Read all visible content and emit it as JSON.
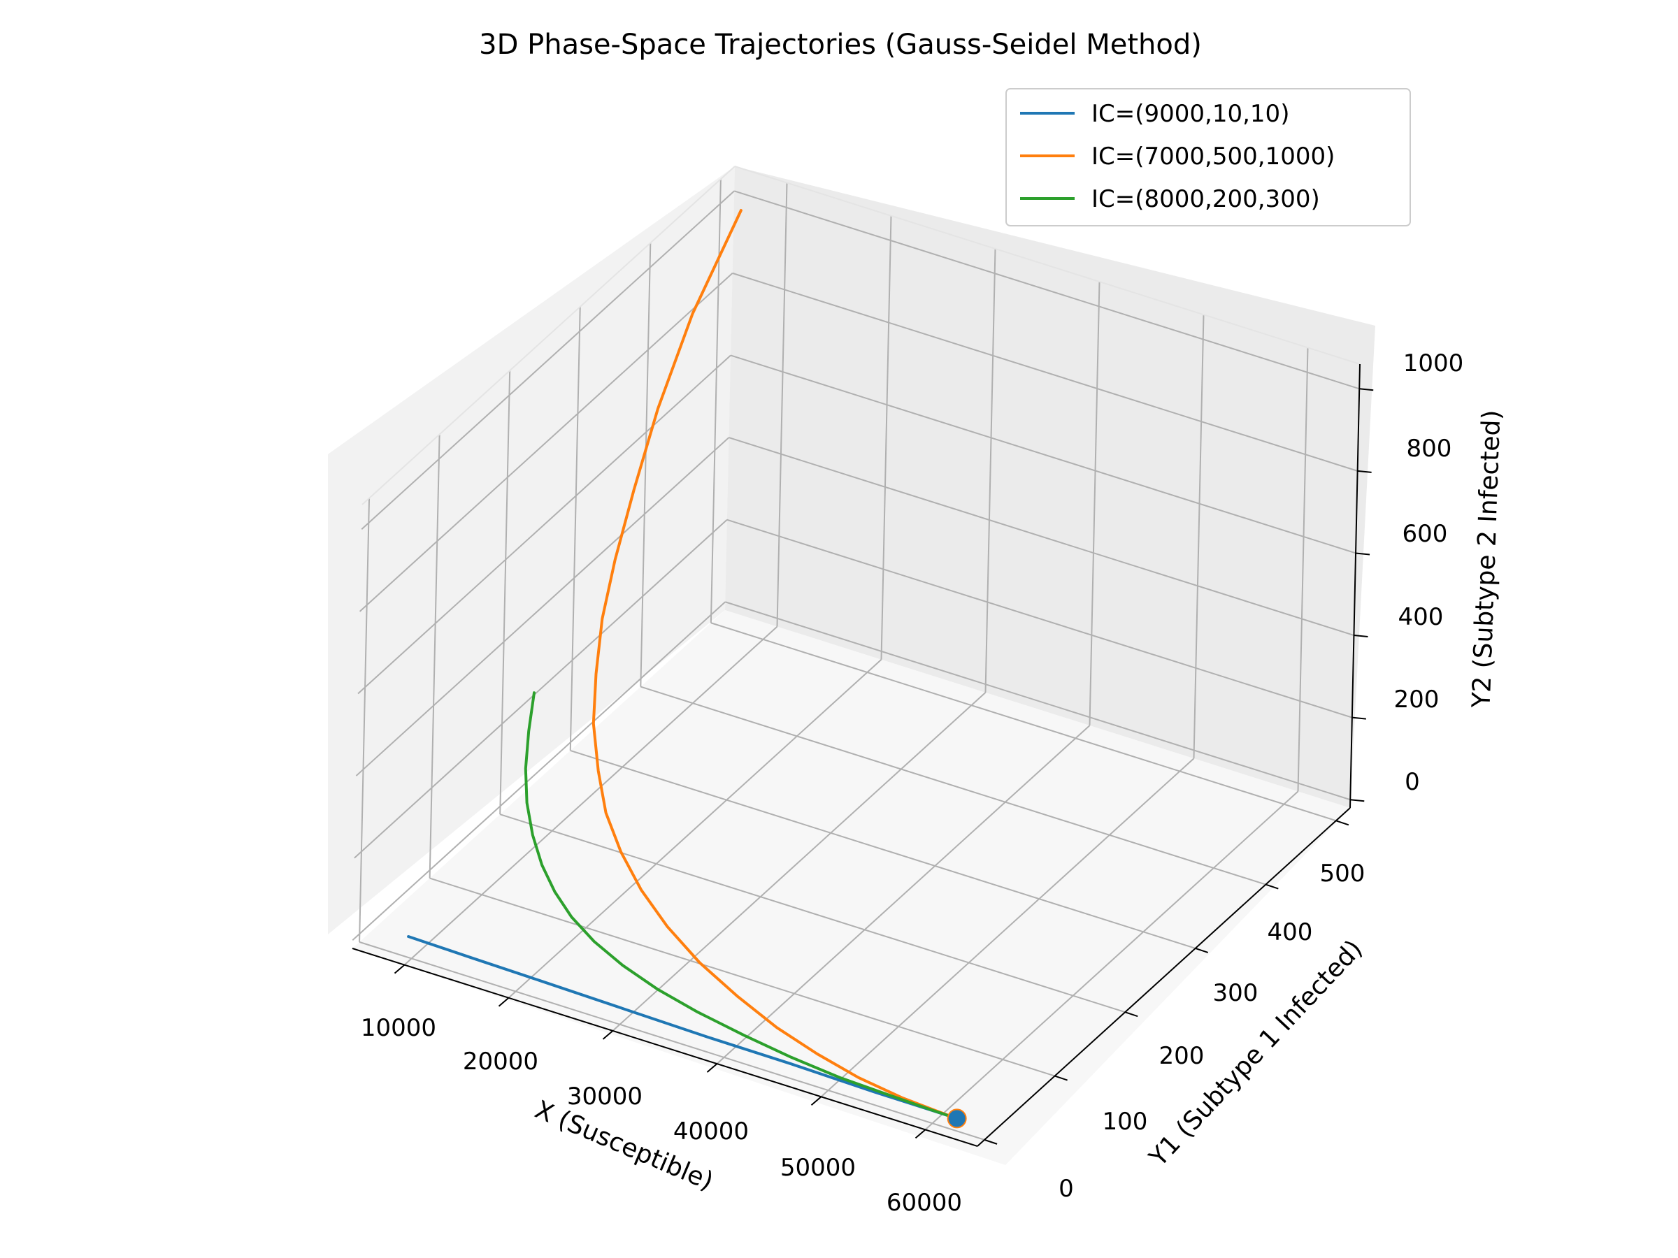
{
  "chart_data": {
    "type": "line",
    "projection": "3d",
    "title": "3D Phase-Space Trajectories (Gauss-Seidel Method)",
    "xlabel": "X (Susceptible)",
    "ylabel": "Y1 (Subtype 1 Infected)",
    "zlabel": "Y2 (Subtype 2 Infected)",
    "xlim": [
      5000,
      65000
    ],
    "ylim": [
      -10,
      520
    ],
    "zlim": [
      -20,
      1060
    ],
    "xticks": [
      "10000",
      "20000",
      "30000",
      "40000",
      "50000",
      "60000"
    ],
    "yticks": [
      "0",
      "100",
      "200",
      "300",
      "400",
      "500"
    ],
    "zticks": [
      "0",
      "200",
      "400",
      "600",
      "800",
      "1000"
    ],
    "grid": true,
    "legend_position": "top-right",
    "equilibrium_point": {
      "x": 62000,
      "y1": 5,
      "y2": 0
    },
    "series": [
      {
        "name": "IC=(9000,10,10)",
        "color": "#1f77b4",
        "points": [
          [
            9000,
            10,
            10
          ],
          [
            15000,
            9,
            9
          ],
          [
            22000,
            8,
            8
          ],
          [
            30000,
            7,
            6
          ],
          [
            38000,
            6,
            4
          ],
          [
            46000,
            6,
            3
          ],
          [
            54000,
            5,
            1
          ],
          [
            60000,
            5,
            0.5
          ],
          [
            62000,
            5,
            0
          ]
        ]
      },
      {
        "name": "IC=(7000,500,1000)",
        "color": "#ff7f0e",
        "points": [
          [
            7000,
            500,
            1000
          ],
          [
            8500,
            410,
            900
          ],
          [
            10000,
            340,
            790
          ],
          [
            11500,
            285,
            690
          ],
          [
            12800,
            240,
            600
          ],
          [
            14000,
            205,
            520
          ],
          [
            15500,
            175,
            445
          ],
          [
            17000,
            150,
            375
          ],
          [
            19000,
            128,
            310
          ],
          [
            21000,
            110,
            252
          ],
          [
            23500,
            95,
            200
          ],
          [
            26500,
            80,
            155
          ],
          [
            30000,
            66,
            115
          ],
          [
            34000,
            53,
            80
          ],
          [
            38500,
            41,
            52
          ],
          [
            43000,
            30,
            30
          ],
          [
            47500,
            21,
            16
          ],
          [
            52000,
            13,
            7
          ],
          [
            56500,
            8,
            2
          ],
          [
            60000,
            6,
            0.5
          ],
          [
            62000,
            5,
            0
          ]
        ]
      },
      {
        "name": "IC=(8000,200,300)",
        "color": "#2ca02c",
        "points": [
          [
            8000,
            200,
            300
          ],
          [
            9200,
            175,
            255
          ],
          [
            10500,
            152,
            210
          ],
          [
            12000,
            132,
            170
          ],
          [
            13800,
            114,
            134
          ],
          [
            15800,
            98,
            102
          ],
          [
            18000,
            84,
            76
          ],
          [
            20500,
            71,
            55
          ],
          [
            23500,
            59,
            38
          ],
          [
            27000,
            48,
            25
          ],
          [
            31000,
            38,
            15
          ],
          [
            35500,
            29,
            9
          ],
          [
            40500,
            21,
            5
          ],
          [
            45500,
            14,
            2.5
          ],
          [
            50500,
            9,
            1
          ],
          [
            55500,
            7,
            0.5
          ],
          [
            59500,
            5.5,
            0.2
          ],
          [
            62000,
            5,
            0
          ]
        ]
      }
    ]
  }
}
